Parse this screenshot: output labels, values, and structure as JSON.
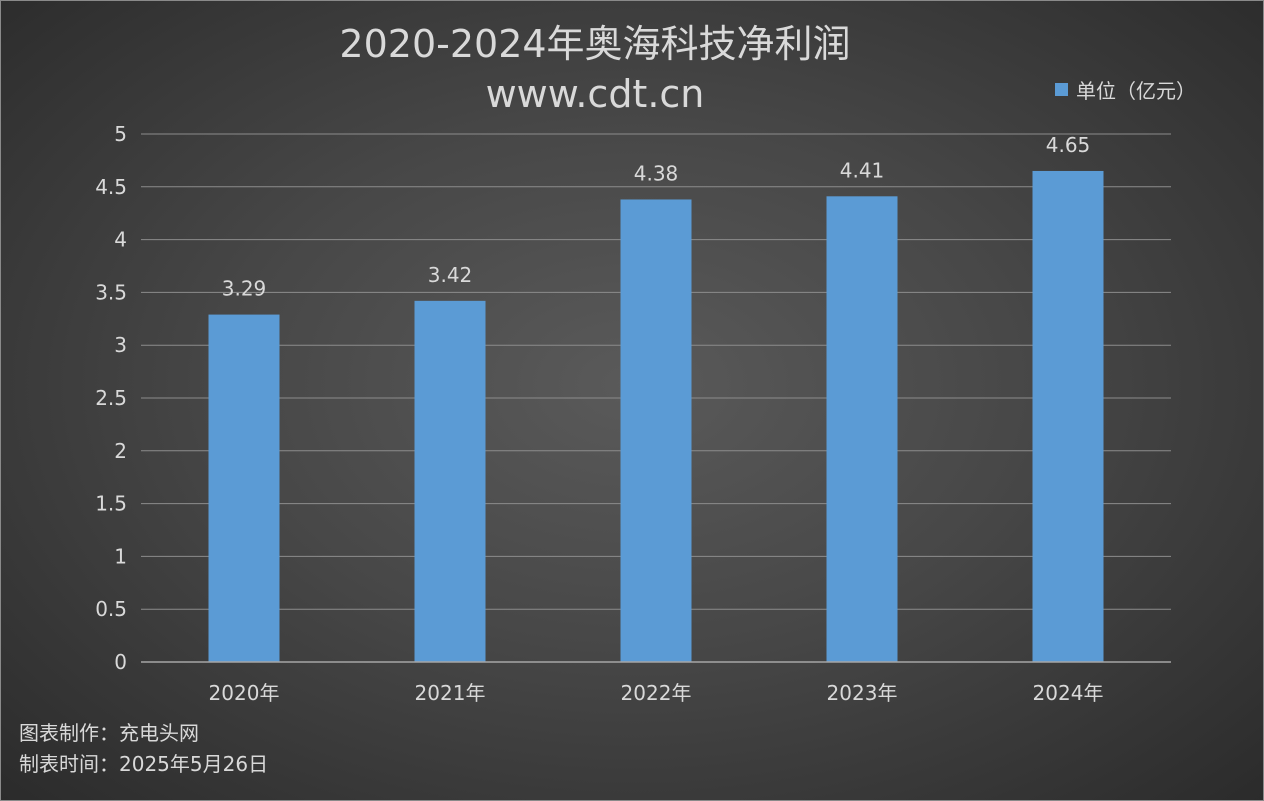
{
  "title_line1": "2020-2024年奥海科技净利润",
  "title_line2": "www.cdt.cn",
  "legend": {
    "label": "单位（亿元）"
  },
  "footer": {
    "maker": "图表制作：充电头网",
    "date": "制表时间：2025年5月26日"
  },
  "colors": {
    "bar": "#5b9bd5",
    "text": "#d9d9d9",
    "grid": "#8c8c8c"
  },
  "chart_data": {
    "type": "bar",
    "title": "2020-2024年奥海科技净利润",
    "subtitle": "www.cdt.cn",
    "categories": [
      "2020年",
      "2021年",
      "2022年",
      "2023年",
      "2024年"
    ],
    "series": [
      {
        "name": "单位（亿元）",
        "values": [
          3.29,
          3.42,
          4.38,
          4.41,
          4.65
        ]
      }
    ],
    "data_labels": [
      "3.29",
      "3.42",
      "4.38",
      "4.41",
      "4.65"
    ],
    "y_ticks": [
      "0",
      "0.5",
      "1",
      "1.5",
      "2",
      "2.5",
      "3",
      "3.5",
      "4",
      "4.5",
      "5"
    ],
    "ylim": [
      0,
      5
    ],
    "xlabel": "",
    "ylabel": "",
    "grid": true,
    "legend_position": "top-right"
  }
}
